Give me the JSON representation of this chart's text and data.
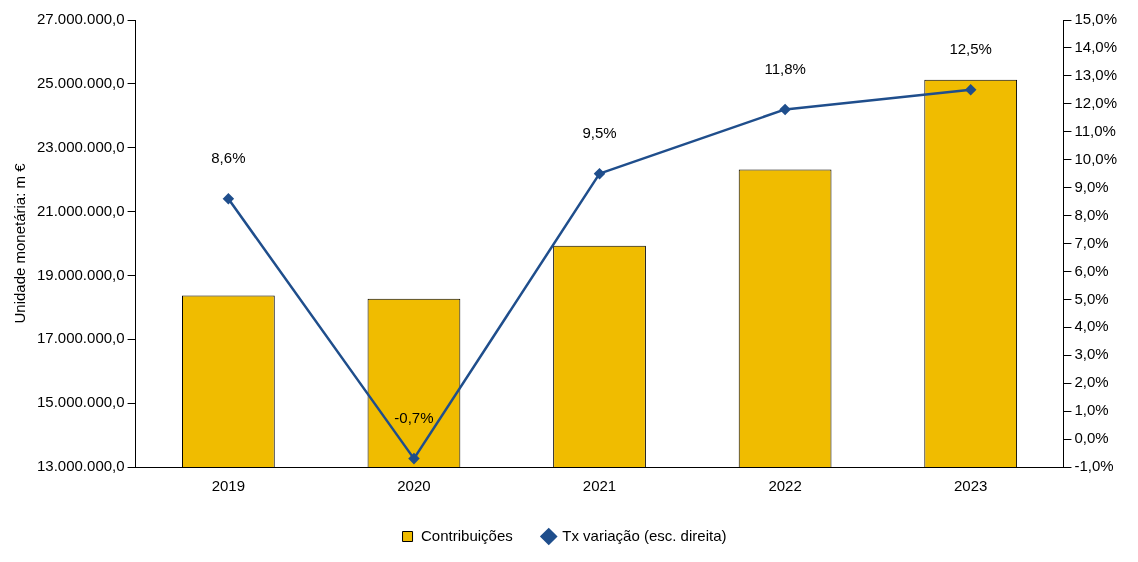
{
  "chart_data": {
    "type": "bar",
    "ylabel": "Unidade monetária: m €",
    "categories": [
      "2019",
      "2020",
      "2021",
      "2022",
      "2023"
    ],
    "series": [
      {
        "name": "Contribuições",
        "color": "#f0bc00",
        "values": [
          18370000,
          18270000,
          19930000,
          22320000,
          25130000
        ]
      },
      {
        "name": "Tx variação (esc. direita)",
        "type": "line",
        "axis": "y2",
        "color": "#1f4e8c",
        "values": [
          8.6,
          -0.7,
          9.5,
          11.8,
          12.5
        ],
        "value_labels": [
          "8,6%",
          "-0,7%",
          "9,5%",
          "11,8%",
          "12,5%"
        ],
        "marker": "diamond"
      }
    ],
    "ylim": [
      13000000,
      27000000
    ],
    "yticks": [
      {
        "value": 13000000,
        "label": "13.000.000,0"
      },
      {
        "value": 15000000,
        "label": "15.000.000,0"
      },
      {
        "value": 17000000,
        "label": "17.000.000,0"
      },
      {
        "value": 19000000,
        "label": "19.000.000,0"
      },
      {
        "value": 21000000,
        "label": "21.000.000,0"
      },
      {
        "value": 23000000,
        "label": "23.000.000,0"
      },
      {
        "value": 25000000,
        "label": "25.000.000,0"
      },
      {
        "value": 27000000,
        "label": "27.000.000,0"
      }
    ],
    "y2lim": [
      -1,
      15
    ],
    "y2ticks": [
      {
        "value": -1,
        "label": "-1,0%"
      },
      {
        "value": 0,
        "label": "0,0%"
      },
      {
        "value": 1,
        "label": "1,0%"
      },
      {
        "value": 2,
        "label": "2,0%"
      },
      {
        "value": 3,
        "label": "3,0%"
      },
      {
        "value": 4,
        "label": "4,0%"
      },
      {
        "value": 5,
        "label": "5,0%"
      },
      {
        "value": 6,
        "label": "6,0%"
      },
      {
        "value": 7,
        "label": "7,0%"
      },
      {
        "value": 8,
        "label": "8,0%"
      },
      {
        "value": 9,
        "label": "9,0%"
      },
      {
        "value": 10,
        "label": "10,0%"
      },
      {
        "value": 11,
        "label": "11,0%"
      },
      {
        "value": 12,
        "label": "12,0%"
      },
      {
        "value": 13,
        "label": "13,0%"
      },
      {
        "value": 14,
        "label": "14,0%"
      },
      {
        "value": 15,
        "label": "15,0%"
      }
    ],
    "grid": false,
    "legend": "bottom"
  }
}
